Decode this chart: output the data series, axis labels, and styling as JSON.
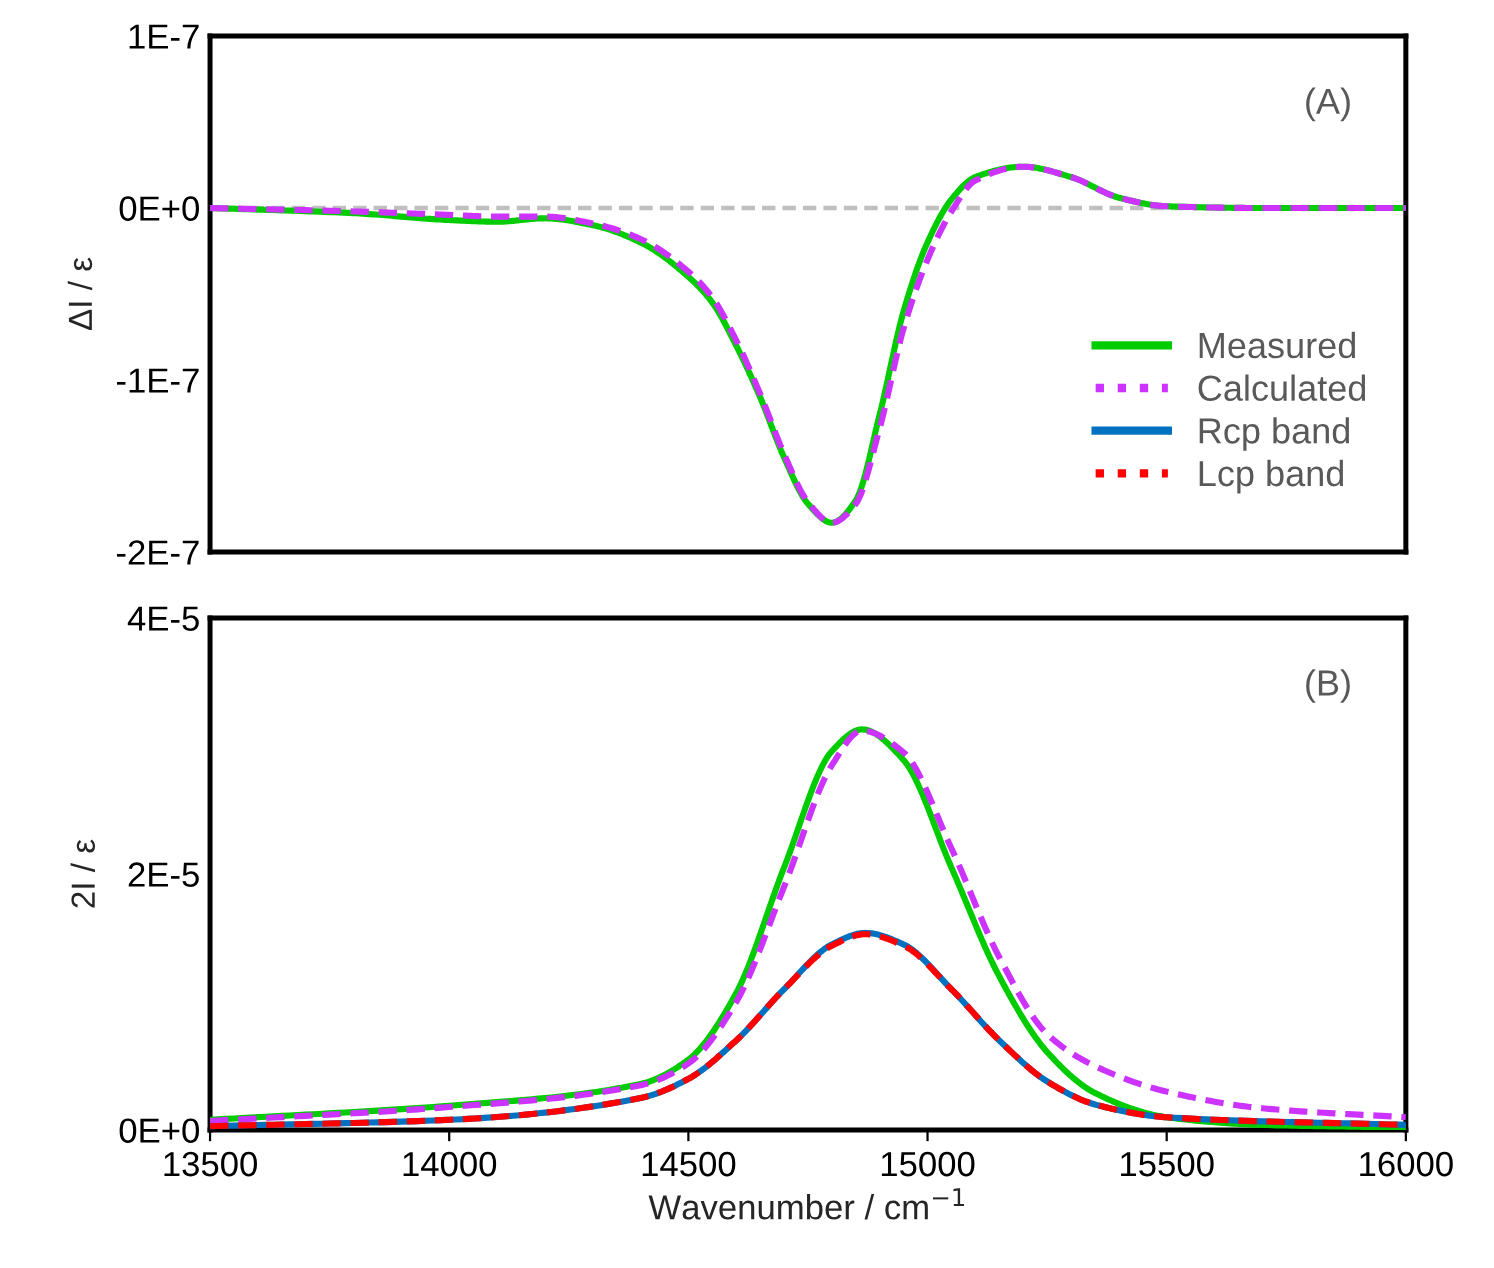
{
  "chart_data": [
    {
      "type": "line",
      "ylabel": "ΔI / ε",
      "xlim": [
        13500,
        16000
      ],
      "xticks": [
        13500,
        14000,
        14500,
        15000,
        15500,
        16000
      ],
      "tick_labels": "y",
      "ylim": [
        -2e-07,
        1e-07
      ],
      "yticks": [
        {
          "value": 1e-07,
          "label": "1E-7"
        },
        {
          "value": 0,
          "label": "0E+0"
        },
        {
          "value": -1e-07,
          "label": "-1E-7"
        },
        {
          "value": -2e-07,
          "label": "-2E-7"
        }
      ],
      "grid": false,
      "legend": "right",
      "annotations": [
        "(A)"
      ],
      "ref_lines": [
        {
          "axis": "y",
          "value": 0,
          "color": "#bfbfbf",
          "line_style": "dashed"
        }
      ],
      "series": [
        {
          "name": "Measured",
          "color": "#00cc00",
          "line_style": "solid",
          "x": [
            13500,
            13800,
            14000,
            14100,
            14200,
            14300,
            14400,
            14500,
            14550,
            14600,
            14650,
            14700,
            14750,
            14800,
            14850,
            14900,
            14950,
            15000,
            15050,
            15100,
            15200,
            15300,
            15400,
            15500,
            15700,
            16000
          ],
          "values": [
            0,
            -3e-09,
            -7e-09,
            -8e-09,
            -6e-09,
            -1e-08,
            -2e-08,
            -4e-08,
            -5.5e-08,
            -8e-08,
            -1.1e-07,
            -1.45e-07,
            -1.72e-07,
            -1.83e-07,
            -1.7e-07,
            -1.2e-07,
            -6e-08,
            -2e-08,
            5e-09,
            1.8e-08,
            2.4e-08,
            1.8e-08,
            6e-09,
            1e-09,
            0,
            0
          ]
        },
        {
          "name": "Calculated",
          "color": "#cc33ff",
          "line_style": "dashed",
          "x": [
            13500,
            13800,
            14000,
            14100,
            14200,
            14300,
            14400,
            14500,
            14550,
            14600,
            14650,
            14700,
            14750,
            14800,
            14850,
            14900,
            14950,
            15000,
            15050,
            15100,
            15200,
            15300,
            15400,
            15500,
            15700,
            16000
          ],
          "values": [
            0,
            -2e-09,
            -4e-09,
            -5e-09,
            -5e-09,
            -9e-09,
            -1.8e-08,
            -3.7e-08,
            -5.2e-08,
            -7.7e-08,
            -1.08e-07,
            -1.43e-07,
            -1.71e-07,
            -1.83e-07,
            -1.72e-07,
            -1.28e-07,
            -7e-08,
            -3e-08,
            -2e-09,
            1.6e-08,
            2.4e-08,
            1.8e-08,
            6e-09,
            1e-09,
            0,
            0
          ]
        }
      ]
    },
    {
      "type": "line",
      "ylabel": "2I / ε",
      "xlabel": "Wavenumber / cm$^{−1}$",
      "xlim": [
        13500,
        16000
      ],
      "xticks": [
        13500,
        14000,
        14500,
        15000,
        15500,
        16000
      ],
      "ylim": [
        0,
        4e-05
      ],
      "yticks": [
        {
          "value": 0,
          "label": "0E+0"
        },
        {
          "value": 2e-05,
          "label": "2E-5"
        },
        {
          "value": 4e-05,
          "label": "4E-5"
        }
      ],
      "grid": false,
      "legend": "right",
      "annotations": [
        "(B)"
      ],
      "series": [
        {
          "color": "#00cc00",
          "line_style": "solid",
          "x": [
            13500,
            14000,
            14400,
            14500,
            14600,
            14700,
            14800,
            14863,
            14950,
            15050,
            15150,
            15250,
            15350,
            15500,
            15700,
            16000
          ],
          "values": [
            8e-07,
            1.9e-06,
            3.6e-06,
            5.5e-06,
            1.07e-05,
            2.05e-05,
            2.96e-05,
            3.13e-05,
            2.89e-05,
            2.05e-05,
            1.2e-05,
            6.1e-06,
            2.9e-06,
            1e-06,
            4e-07,
            2e-07
          ]
        },
        {
          "color": "#cc33ff",
          "line_style": "dashed",
          "x": [
            13500,
            14000,
            14400,
            14500,
            14600,
            14700,
            14800,
            14863,
            14950,
            15050,
            15150,
            15250,
            15350,
            15500,
            15700,
            16000
          ],
          "values": [
            7e-07,
            1.8e-06,
            3.5e-06,
            5.2e-06,
            1e-05,
            1.9e-05,
            2.85e-05,
            3.12e-05,
            2.95e-05,
            2.2e-05,
            1.35e-05,
            7.5e-06,
            5e-06,
            3e-06,
            1.7e-06,
            1e-06
          ]
        },
        {
          "name": "Rcp band",
          "color": "#0070c0",
          "line_style": "solid",
          "x": [
            13500,
            14000,
            14400,
            14500,
            14600,
            14700,
            14800,
            14870,
            14950,
            15050,
            15150,
            15250,
            15350,
            15500,
            16000
          ],
          "values": [
            3e-07,
            8e-07,
            2.5e-06,
            4e-06,
            7e-06,
            1.1e-05,
            1.45e-05,
            1.54e-05,
            1.45e-05,
            1.1e-05,
            7e-06,
            3.8e-06,
            2e-06,
            1e-06,
            4e-07
          ]
        },
        {
          "name": "Lcp band",
          "color": "#ff0000",
          "line_style": "dashed",
          "x": [
            13500,
            14000,
            14400,
            14500,
            14600,
            14700,
            14800,
            14870,
            14950,
            15050,
            15150,
            15250,
            15350,
            15500,
            16000
          ],
          "values": [
            3e-07,
            8e-07,
            2.5e-06,
            4e-06,
            7e-06,
            1.1e-05,
            1.44e-05,
            1.53e-05,
            1.44e-05,
            1.1e-05,
            7e-06,
            3.8e-06,
            2e-06,
            1e-06,
            4e-07
          ]
        }
      ]
    }
  ]
}
